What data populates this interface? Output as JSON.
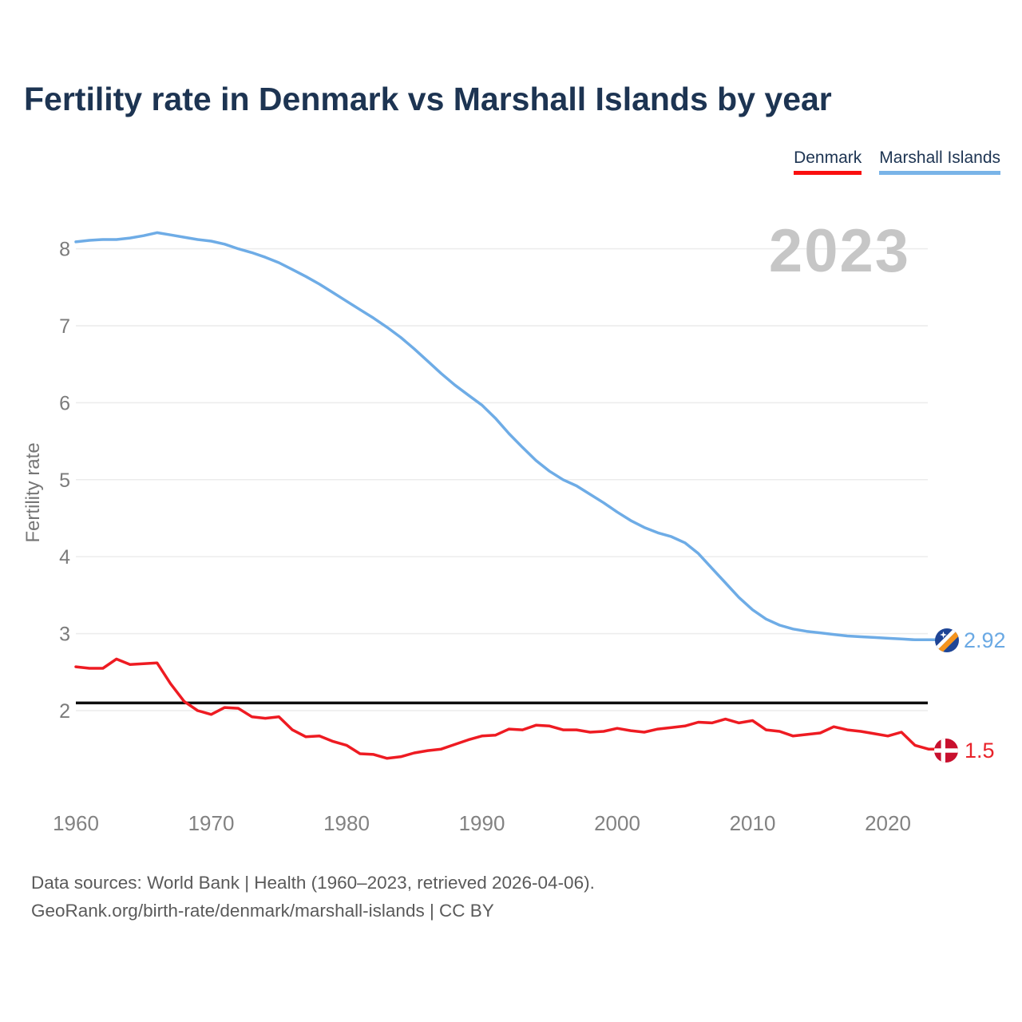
{
  "title": "Fertility rate in Denmark vs Marshall Islands by year",
  "watermark": "2023",
  "legend": {
    "items": [
      {
        "label": "Denmark",
        "color": "#fa0f0f"
      },
      {
        "label": "Marshall Islands",
        "color": "#79b4e8"
      }
    ]
  },
  "y_axis": {
    "label": "Fertility rate",
    "ticks": [
      2,
      3,
      4,
      5,
      6,
      7,
      8
    ]
  },
  "x_axis": {
    "ticks": [
      1960,
      1970,
      1980,
      1990,
      2000,
      2010,
      2020
    ]
  },
  "reference_line": {
    "value": 2.1,
    "color": "#0d0d0d"
  },
  "end_labels": {
    "marshall_islands": {
      "value": "2.92",
      "icon": "marshall-islands-flag",
      "color": "#6aa9e4"
    },
    "denmark": {
      "value": "1.5",
      "icon": "denmark-flag",
      "color": "#e8232a"
    }
  },
  "footer": {
    "line1": "Data sources: World Bank | Health (1960–2023, retrieved 2026-04-06).",
    "line2": "GeoRank.org/birth-rate/denmark/marshall-islands | CC BY"
  },
  "chart_data": {
    "type": "line",
    "title": "Fertility rate in Denmark vs Marshall Islands by year",
    "xlabel": "",
    "ylabel": "Fertility rate",
    "xlim": [
      1960,
      2023
    ],
    "ylim": [
      1.3,
      8.5
    ],
    "grid": "horizontal",
    "legend_position": "top-right",
    "reference_line": 2.1,
    "x": [
      1960,
      1961,
      1962,
      1963,
      1964,
      1965,
      1966,
      1967,
      1968,
      1969,
      1970,
      1971,
      1972,
      1973,
      1974,
      1975,
      1976,
      1977,
      1978,
      1979,
      1980,
      1981,
      1982,
      1983,
      1984,
      1985,
      1986,
      1987,
      1988,
      1989,
      1990,
      1991,
      1992,
      1993,
      1994,
      1995,
      1996,
      1997,
      1998,
      1999,
      2000,
      2001,
      2002,
      2003,
      2004,
      2005,
      2006,
      2007,
      2008,
      2009,
      2010,
      2011,
      2012,
      2013,
      2014,
      2015,
      2016,
      2017,
      2018,
      2019,
      2020,
      2021,
      2022,
      2023
    ],
    "series": [
      {
        "name": "Marshall Islands",
        "color": "#6eace6",
        "values": [
          8.09,
          8.11,
          8.12,
          8.12,
          8.14,
          8.17,
          8.21,
          8.18,
          8.15,
          8.12,
          8.1,
          8.06,
          8.0,
          7.95,
          7.89,
          7.82,
          7.73,
          7.64,
          7.54,
          7.43,
          7.32,
          7.21,
          7.1,
          6.98,
          6.85,
          6.7,
          6.54,
          6.38,
          6.23,
          6.1,
          5.97,
          5.8,
          5.6,
          5.42,
          5.25,
          5.11,
          5.0,
          4.92,
          4.81,
          4.7,
          4.58,
          4.47,
          4.38,
          4.31,
          4.26,
          4.18,
          4.04,
          3.85,
          3.66,
          3.47,
          3.31,
          3.19,
          3.11,
          3.06,
          3.03,
          3.01,
          2.99,
          2.97,
          2.96,
          2.95,
          2.94,
          2.93,
          2.92,
          2.92
        ]
      },
      {
        "name": "Denmark",
        "color": "#ee1b22",
        "values": [
          2.57,
          2.55,
          2.55,
          2.67,
          2.6,
          2.61,
          2.62,
          2.35,
          2.12,
          2.0,
          1.95,
          2.04,
          2.03,
          1.92,
          1.9,
          1.92,
          1.75,
          1.66,
          1.67,
          1.6,
          1.55,
          1.44,
          1.43,
          1.38,
          1.4,
          1.45,
          1.48,
          1.5,
          1.56,
          1.62,
          1.67,
          1.68,
          1.76,
          1.75,
          1.81,
          1.8,
          1.75,
          1.75,
          1.72,
          1.73,
          1.77,
          1.74,
          1.72,
          1.76,
          1.78,
          1.8,
          1.85,
          1.84,
          1.89,
          1.84,
          1.87,
          1.75,
          1.73,
          1.67,
          1.69,
          1.71,
          1.79,
          1.75,
          1.73,
          1.7,
          1.67,
          1.72,
          1.55,
          1.5
        ]
      }
    ]
  }
}
